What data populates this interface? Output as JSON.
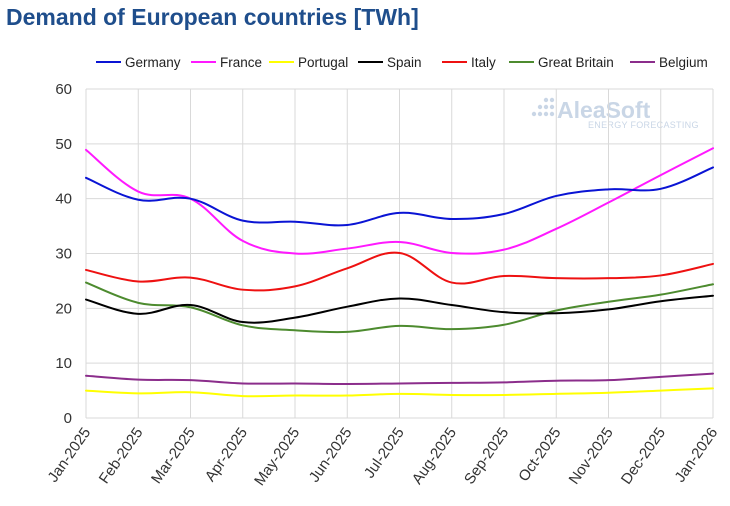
{
  "chart_data": {
    "type": "line",
    "title": "Demand of European countries [TWh]",
    "xlabel": "",
    "ylabel": "",
    "ylim": [
      0,
      60
    ],
    "yticks": [
      0,
      10,
      20,
      30,
      40,
      50,
      60
    ],
    "grid": true,
    "legend_position": "top",
    "categories": [
      "Jan-2025",
      "Feb-2025",
      "Mar-2025",
      "Apr-2025",
      "May-2025",
      "Jun-2025",
      "Jul-2025",
      "Aug-2025",
      "Sep-2025",
      "Oct-2025",
      "Nov-2025",
      "Dec-2025",
      "Jan-2026"
    ],
    "series": [
      {
        "name": "Germany",
        "color": "#0a14d4",
        "values": [
          43.8,
          39.8,
          40.0,
          36.0,
          35.8,
          35.2,
          37.4,
          36.3,
          37.2,
          40.5,
          41.7,
          41.8,
          45.7
        ]
      },
      {
        "name": "France",
        "color": "#ff19ff",
        "values": [
          48.9,
          41.3,
          40.0,
          32.3,
          30.0,
          30.9,
          32.1,
          30.1,
          30.7,
          34.5,
          39.3,
          44.3,
          49.2
        ]
      },
      {
        "name": "Portugal",
        "color": "#ffff00",
        "values": [
          5.0,
          4.5,
          4.7,
          4.0,
          4.1,
          4.1,
          4.4,
          4.2,
          4.2,
          4.4,
          4.6,
          5.0,
          5.4
        ]
      },
      {
        "name": "Spain",
        "color": "#000000",
        "values": [
          21.6,
          19.0,
          20.6,
          17.5,
          18.3,
          20.3,
          21.8,
          20.6,
          19.3,
          19.1,
          19.8,
          21.3,
          22.3
        ]
      },
      {
        "name": "Italy",
        "color": "#ee1111",
        "values": [
          27.0,
          24.9,
          25.6,
          23.4,
          24.0,
          27.3,
          30.1,
          24.7,
          25.9,
          25.5,
          25.5,
          26.0,
          28.1
        ]
      },
      {
        "name": "Great Britain",
        "color": "#4d8b2f",
        "values": [
          24.7,
          21.0,
          20.2,
          16.9,
          16.0,
          15.7,
          16.8,
          16.2,
          17.0,
          19.6,
          21.2,
          22.5,
          24.4
        ]
      },
      {
        "name": "Belgium",
        "color": "#8b2d8b",
        "values": [
          7.7,
          7.0,
          6.9,
          6.3,
          6.3,
          6.2,
          6.3,
          6.4,
          6.5,
          6.8,
          6.9,
          7.5,
          8.1
        ]
      }
    ]
  },
  "watermark": {
    "brand": "AleaSoft",
    "tagline": "ENERGY FORECASTING"
  }
}
